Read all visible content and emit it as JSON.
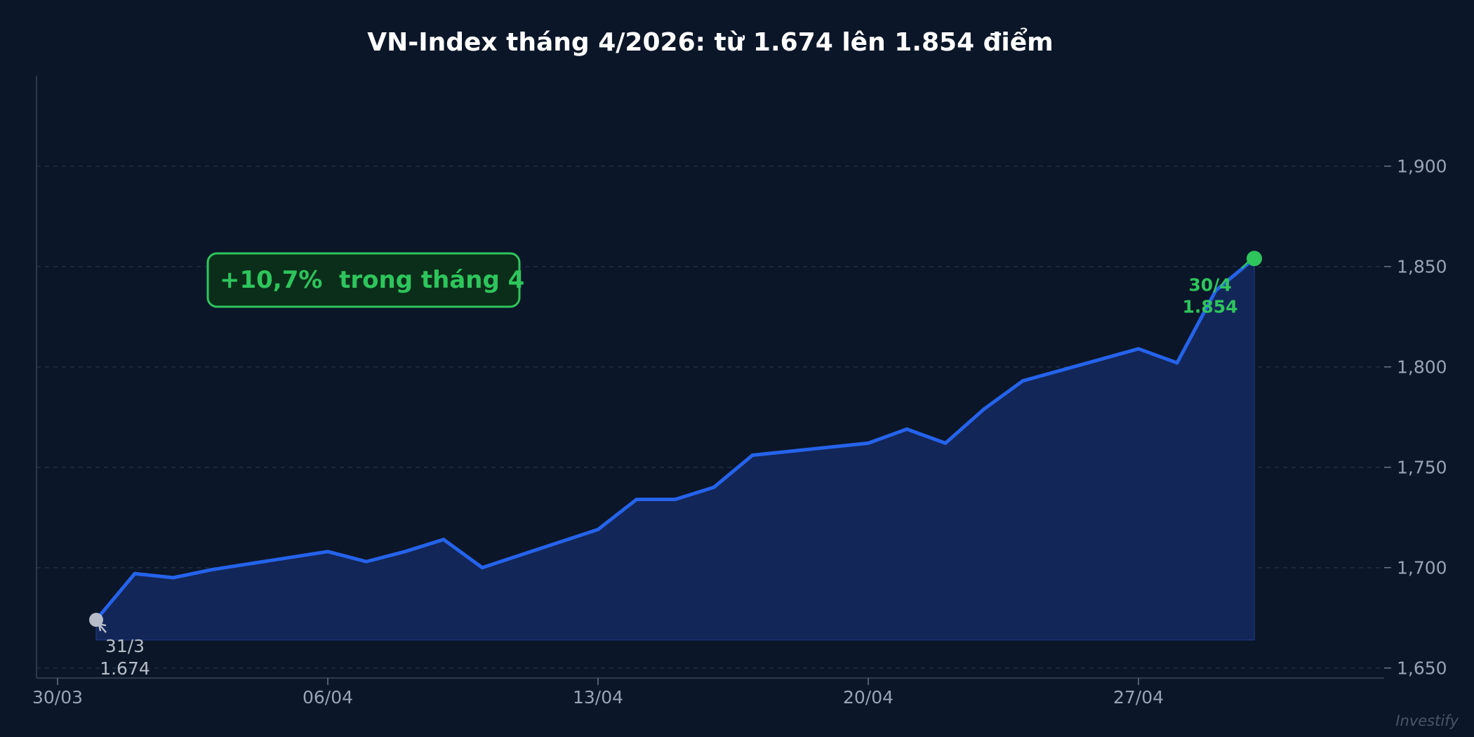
{
  "chart_data": {
    "type": "area",
    "title": "VN-Index tháng 4/2026: từ 1.674 lên 1.854 điểm",
    "xlabel": "",
    "ylabel": "",
    "x": [
      "2026-03-31",
      "2026-04-01",
      "2026-04-02",
      "2026-04-03",
      "2026-04-06",
      "2026-04-07",
      "2026-04-08",
      "2026-04-09",
      "2026-04-10",
      "2026-04-13",
      "2026-04-14",
      "2026-04-15",
      "2026-04-16",
      "2026-04-17",
      "2026-04-20",
      "2026-04-21",
      "2026-04-22",
      "2026-04-23",
      "2026-04-24",
      "2026-04-27",
      "2026-04-28",
      "2026-04-29",
      "2026-04-30"
    ],
    "series": [
      {
        "values": [
          1674,
          1697,
          1695,
          1699,
          1708,
          1703,
          1708,
          1714,
          1700,
          1719,
          1734,
          1734,
          1740,
          1756,
          1762,
          1769,
          1762,
          1779,
          1793,
          1809,
          1802,
          1838,
          1854
        ],
        "color": "#2563eb"
      }
    ],
    "xticks": [
      "30/03",
      "06/04",
      "13/04",
      "20/04",
      "27/04"
    ],
    "xtick_dates": [
      "2026-03-30",
      "2026-04-06",
      "2026-04-13",
      "2026-04-20",
      "2026-04-27"
    ],
    "xlim": [
      "2026-03-30",
      "2026-05-03"
    ],
    "yticks": [
      "1,650",
      "1,700",
      "1,750",
      "1,800",
      "1,850",
      "1,900"
    ],
    "ytick_values": [
      1650,
      1700,
      1750,
      1800,
      1850,
      1900
    ],
    "ylim": [
      1645,
      1945
    ],
    "yaxis_position": "right",
    "grid": true,
    "annotations": {
      "change_box": "+10,7%  trong tháng 4",
      "start_date": "31/3",
      "start_value": "1.674",
      "end_date": "30/4",
      "end_value": "1.854"
    },
    "watermark": "Investify",
    "colors": {
      "background": "#0b1628",
      "line": "#2563eb",
      "fill": "#13275a",
      "positive": "#2ec55c",
      "start_marker": "#b6bdc8"
    }
  }
}
